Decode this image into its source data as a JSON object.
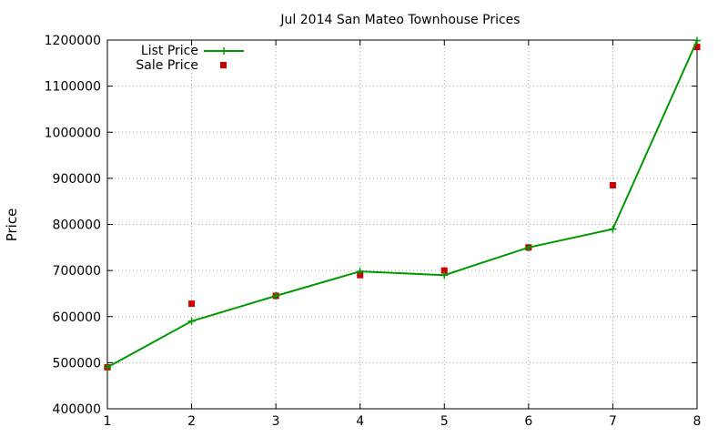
{
  "chart_data": {
    "type": "line",
    "title": "Jul 2014 San Mateo Townhouse Prices",
    "xlabel": "",
    "ylabel": "Price",
    "x": [
      1,
      2,
      3,
      4,
      5,
      6,
      7,
      8
    ],
    "xlim": [
      1,
      8
    ],
    "ylim": [
      400000,
      1200000
    ],
    "xticks": [
      1,
      2,
      3,
      4,
      5,
      6,
      7,
      8
    ],
    "yticks": [
      400000,
      500000,
      600000,
      700000,
      800000,
      900000,
      1000000,
      1100000,
      1200000
    ],
    "grid": true,
    "legend_position": "top-left",
    "series": [
      {
        "name": "List Price",
        "style": "line-with-plus-markers",
        "color": "#009900",
        "values": [
          490000,
          590000,
          645000,
          698000,
          690000,
          750000,
          790000,
          1199000
        ]
      },
      {
        "name": "Sale Price",
        "style": "square-points",
        "color": "#cc0000",
        "values": [
          490000,
          628000,
          645000,
          690000,
          700000,
          750000,
          885000,
          1185000
        ]
      }
    ]
  }
}
